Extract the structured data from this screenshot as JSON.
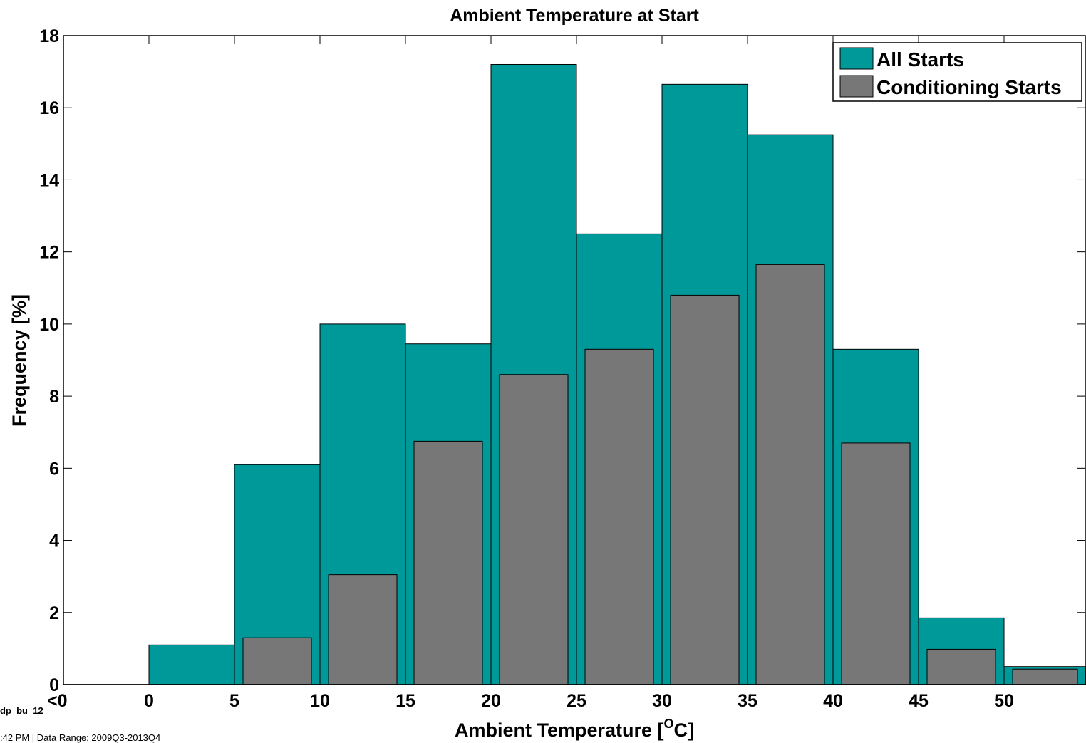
{
  "chart_data": {
    "type": "bar",
    "title": "Ambient Temperature at Start",
    "xlabel_main": "Ambient Temperature [",
    "xlabel_sup": "O",
    "xlabel_end": "C]",
    "ylabel": "Frequency [%]",
    "ylim": [
      0,
      18
    ],
    "yticks": [
      "0",
      "2",
      "4",
      "6",
      "8",
      "10",
      "12",
      "14",
      "16",
      "18"
    ],
    "xticks": [
      "<0",
      "0",
      "5",
      "10",
      "15",
      "20",
      "25",
      "30",
      "35",
      "40",
      "45",
      "50"
    ],
    "bins": [
      "<0",
      "0-5",
      "5-10",
      "10-15",
      "15-20",
      "20-25",
      "25-30",
      "30-35",
      "35-40",
      "40-45",
      "45-50",
      "50-55"
    ],
    "grid": false,
    "legend_position": "top-right",
    "series": [
      {
        "name": "All Starts",
        "color": "#009999",
        "values": [
          0.0,
          1.1,
          6.1,
          10.0,
          9.45,
          17.2,
          12.5,
          16.65,
          15.25,
          9.3,
          1.85,
          0.5
        ]
      },
      {
        "name": "Conditioning Starts",
        "color": "#777777",
        "values": [
          0.0,
          0.0,
          1.3,
          3.05,
          6.75,
          8.6,
          9.3,
          10.8,
          11.65,
          6.7,
          0.98,
          0.43
        ]
      }
    ]
  },
  "footer": {
    "id": "dp_bu_12",
    "note": ":42 PM | Data Range: 2009Q3-2013Q4"
  }
}
